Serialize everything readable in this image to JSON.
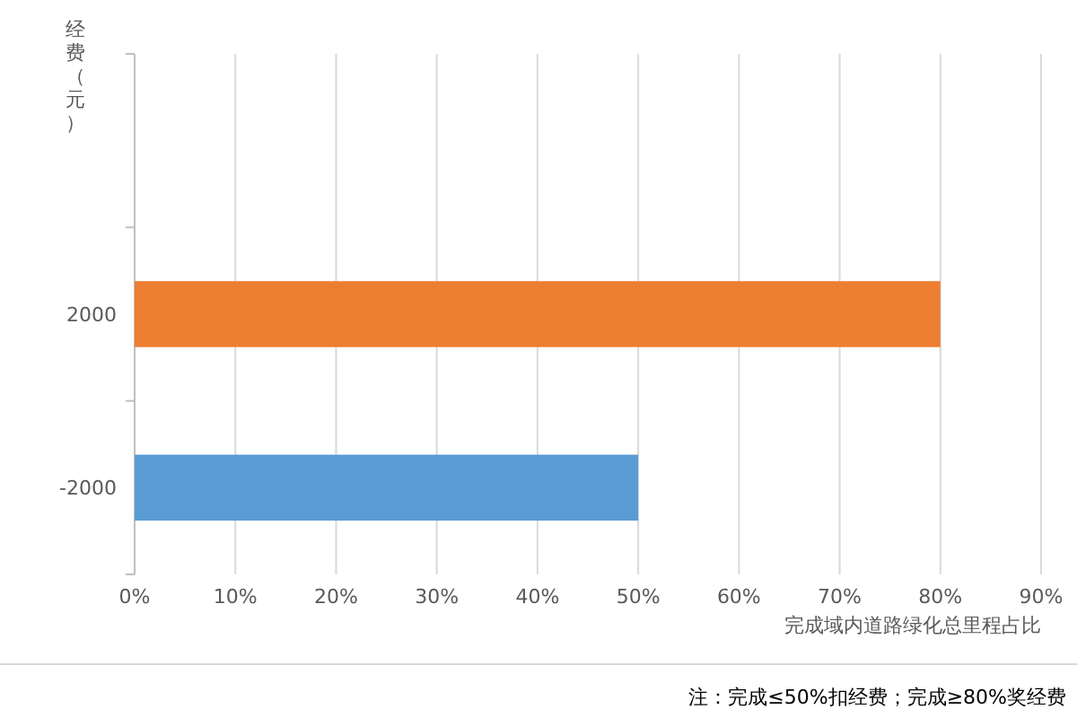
{
  "chart_data": {
    "type": "bar",
    "orientation": "horizontal",
    "categories": [
      null,
      "2000",
      "-2000"
    ],
    "values": [
      null,
      80,
      50
    ],
    "colors": [
      null,
      "#ed7d31",
      "#5b9bd5"
    ],
    "xlim": [
      0,
      90
    ],
    "xticks": [
      {
        "value": 0,
        "label": "0%"
      },
      {
        "value": 10,
        "label": "10%"
      },
      {
        "value": 20,
        "label": "20%"
      },
      {
        "value": 30,
        "label": "30%"
      },
      {
        "value": 40,
        "label": "40%"
      },
      {
        "value": 50,
        "label": "50%"
      },
      {
        "value": 60,
        "label": "60%"
      },
      {
        "value": 70,
        "label": "70%"
      },
      {
        "value": 80,
        "label": "80%"
      },
      {
        "value": 90,
        "label": "90%"
      }
    ],
    "grid": "x",
    "ylabel": "经费（元）",
    "xlabel": "完成域内道路绿化总里程占比",
    "annotations": [
      "注：完成≤50%扣经费；完成≥80%奖经费"
    ]
  }
}
